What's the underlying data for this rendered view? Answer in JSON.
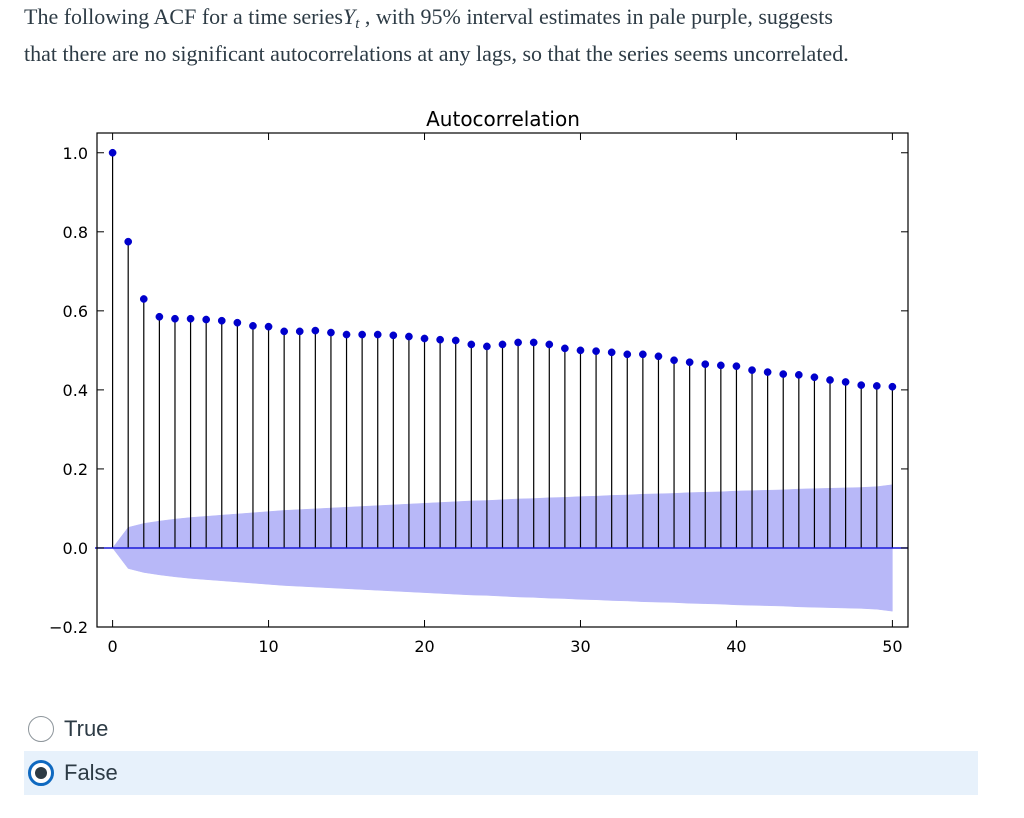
{
  "question": {
    "prefix": "The following ACF for a time series",
    "variable": "Y",
    "subscript": "t",
    "suffix_line1": " , with 95% interval estimates in pale purple, suggests",
    "line2": "that there are no significant autocorrelations at any lags, so that the series seems uncorrelated."
  },
  "answers": [
    {
      "label": "True",
      "selected": false
    },
    {
      "label": "False",
      "selected": true
    }
  ],
  "colors": {
    "stem": "#000000",
    "marker": "#0000cc",
    "band": "#b8b8f8",
    "zero_line": "#1a1ad8",
    "selected_bg": "#e7f1fb",
    "radio_accent": "#0f69c0"
  },
  "chart_data": {
    "type": "stem",
    "title": "Autocorrelation",
    "xlabel": "",
    "ylabel": "",
    "xlim": [
      -1,
      51
    ],
    "ylim": [
      -0.2,
      1.05
    ],
    "x_ticks": [
      0,
      10,
      20,
      30,
      40,
      50
    ],
    "y_ticks": [
      -0.2,
      0.0,
      0.2,
      0.4,
      0.6,
      0.8,
      1.0
    ],
    "y_tick_labels": [
      "−0.2",
      "0.0",
      "0.2",
      "0.4",
      "0.6",
      "0.8",
      "1.0"
    ],
    "lags": [
      0,
      1,
      2,
      3,
      4,
      5,
      6,
      7,
      8,
      9,
      10,
      11,
      12,
      13,
      14,
      15,
      16,
      17,
      18,
      19,
      20,
      21,
      22,
      23,
      24,
      25,
      26,
      27,
      28,
      29,
      30,
      31,
      32,
      33,
      34,
      35,
      36,
      37,
      38,
      39,
      40,
      41,
      42,
      43,
      44,
      45,
      46,
      47,
      48,
      49,
      50
    ],
    "acf": [
      1.0,
      0.775,
      0.63,
      0.585,
      0.58,
      0.58,
      0.578,
      0.575,
      0.57,
      0.562,
      0.56,
      0.548,
      0.548,
      0.55,
      0.545,
      0.54,
      0.54,
      0.54,
      0.538,
      0.535,
      0.53,
      0.527,
      0.525,
      0.515,
      0.51,
      0.515,
      0.52,
      0.52,
      0.515,
      0.505,
      0.5,
      0.498,
      0.495,
      0.49,
      0.49,
      0.485,
      0.475,
      0.47,
      0.465,
      0.462,
      0.46,
      0.45,
      0.445,
      0.44,
      0.438,
      0.432,
      0.425,
      0.42,
      0.412,
      0.41,
      0.408
    ],
    "conf_upper": [
      0.0,
      0.052,
      0.062,
      0.068,
      0.073,
      0.077,
      0.08,
      0.083,
      0.086,
      0.089,
      0.092,
      0.095,
      0.097,
      0.099,
      0.101,
      0.103,
      0.105,
      0.107,
      0.109,
      0.111,
      0.113,
      0.115,
      0.117,
      0.119,
      0.12,
      0.122,
      0.124,
      0.125,
      0.127,
      0.128,
      0.13,
      0.131,
      0.133,
      0.134,
      0.136,
      0.137,
      0.138,
      0.14,
      0.141,
      0.142,
      0.144,
      0.145,
      0.146,
      0.147,
      0.149,
      0.15,
      0.151,
      0.152,
      0.153,
      0.155,
      0.16
    ],
    "conf_lower": [
      0.0,
      -0.052,
      -0.062,
      -0.068,
      -0.073,
      -0.077,
      -0.08,
      -0.083,
      -0.086,
      -0.089,
      -0.092,
      -0.095,
      -0.097,
      -0.099,
      -0.101,
      -0.103,
      -0.105,
      -0.107,
      -0.109,
      -0.111,
      -0.113,
      -0.115,
      -0.117,
      -0.119,
      -0.12,
      -0.122,
      -0.124,
      -0.125,
      -0.127,
      -0.128,
      -0.13,
      -0.131,
      -0.133,
      -0.134,
      -0.136,
      -0.137,
      -0.138,
      -0.14,
      -0.141,
      -0.142,
      -0.144,
      -0.145,
      -0.146,
      -0.147,
      -0.149,
      -0.15,
      -0.151,
      -0.152,
      -0.153,
      -0.155,
      -0.16
    ]
  }
}
